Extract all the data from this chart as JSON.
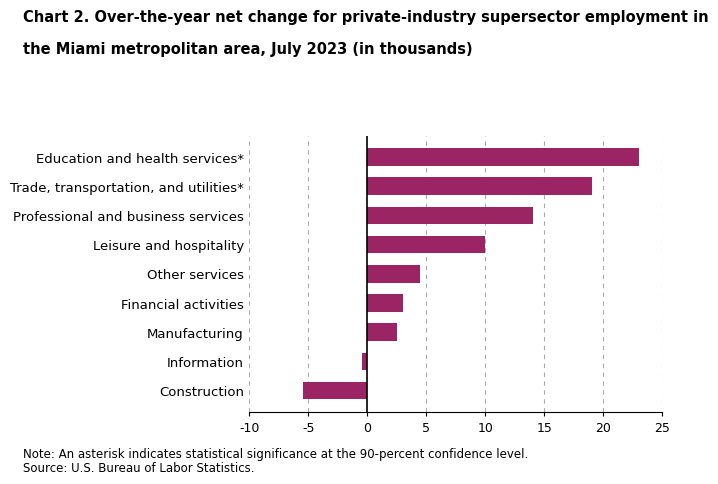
{
  "title_line1": "Chart 2. Over-the-year net change for private-industry supersector employment in",
  "title_line2": "the Miami metropolitan area, July 2023 (in thousands)",
  "categories": [
    "Construction",
    "Information",
    "Manufacturing",
    "Financial activities",
    "Other services",
    "Leisure and hospitality",
    "Professional and business services",
    "Trade, transportation, and utilities*",
    "Education and health services*"
  ],
  "values": [
    -5.5,
    -0.5,
    2.5,
    3.0,
    4.5,
    10.0,
    14.0,
    19.0,
    23.0
  ],
  "bar_color": "#9b2464",
  "xlim": [
    -10,
    25
  ],
  "xticks": [
    -10,
    -5,
    0,
    5,
    10,
    15,
    20,
    25
  ],
  "note1": "Note: An asterisk indicates statistical significance at the 90-percent confidence level.",
  "note2": "Source: U.S. Bureau of Labor Statistics.",
  "title_fontsize": 10.5,
  "label_fontsize": 9.5,
  "tick_fontsize": 9,
  "note_fontsize": 8.5
}
